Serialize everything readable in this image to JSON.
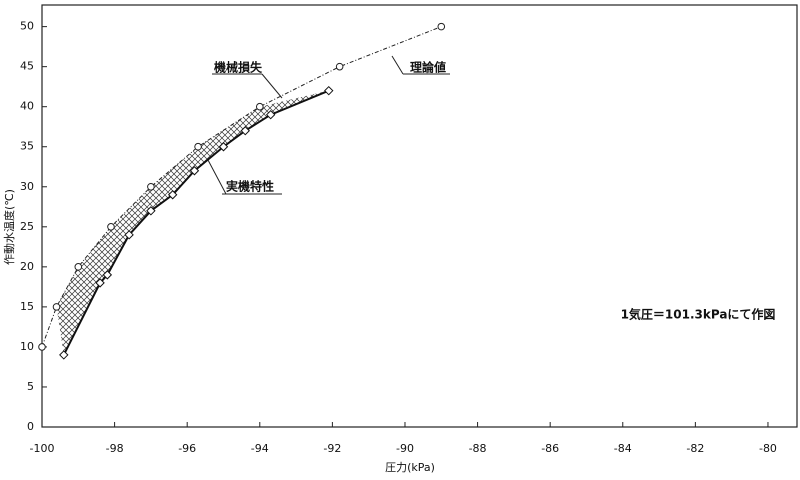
{
  "chart_data": {
    "type": "line",
    "xlabel": "圧力(kPa)",
    "ylabel": "作動水温度(℃)",
    "xlim": [
      -100,
      -79.2
    ],
    "ylim": [
      0,
      52.7
    ],
    "xticks": [
      -100,
      -98,
      -96,
      -94,
      -92,
      -90,
      -88,
      -86,
      -84,
      -82,
      -80
    ],
    "yticks": [
      0,
      5,
      10,
      15,
      20,
      25,
      30,
      35,
      40,
      45,
      50
    ],
    "grid": false,
    "series": [
      {
        "name": "理論値",
        "color": "#222",
        "marker": "circle",
        "x": [
          -100,
          -99.6,
          -99,
          -98.1,
          -97,
          -95.7,
          -94,
          -91.8,
          -89
        ],
        "values": [
          10,
          15,
          20,
          25,
          30,
          35,
          40,
          45,
          50
        ]
      },
      {
        "name": "実機特性",
        "color": "#111",
        "marker": "diamond",
        "x": [
          -99.4,
          -98.4,
          -98.2,
          -97.6,
          -97,
          -96.4,
          -95.8,
          -95,
          -94.4,
          -93.7,
          -92.1
        ],
        "values": [
          9,
          18,
          19,
          24,
          27,
          29,
          32,
          35,
          37,
          39,
          42
        ]
      }
    ],
    "annotations": {
      "loss": "機械損失",
      "note": "1気圧＝101.3kPaにて作図"
    }
  }
}
